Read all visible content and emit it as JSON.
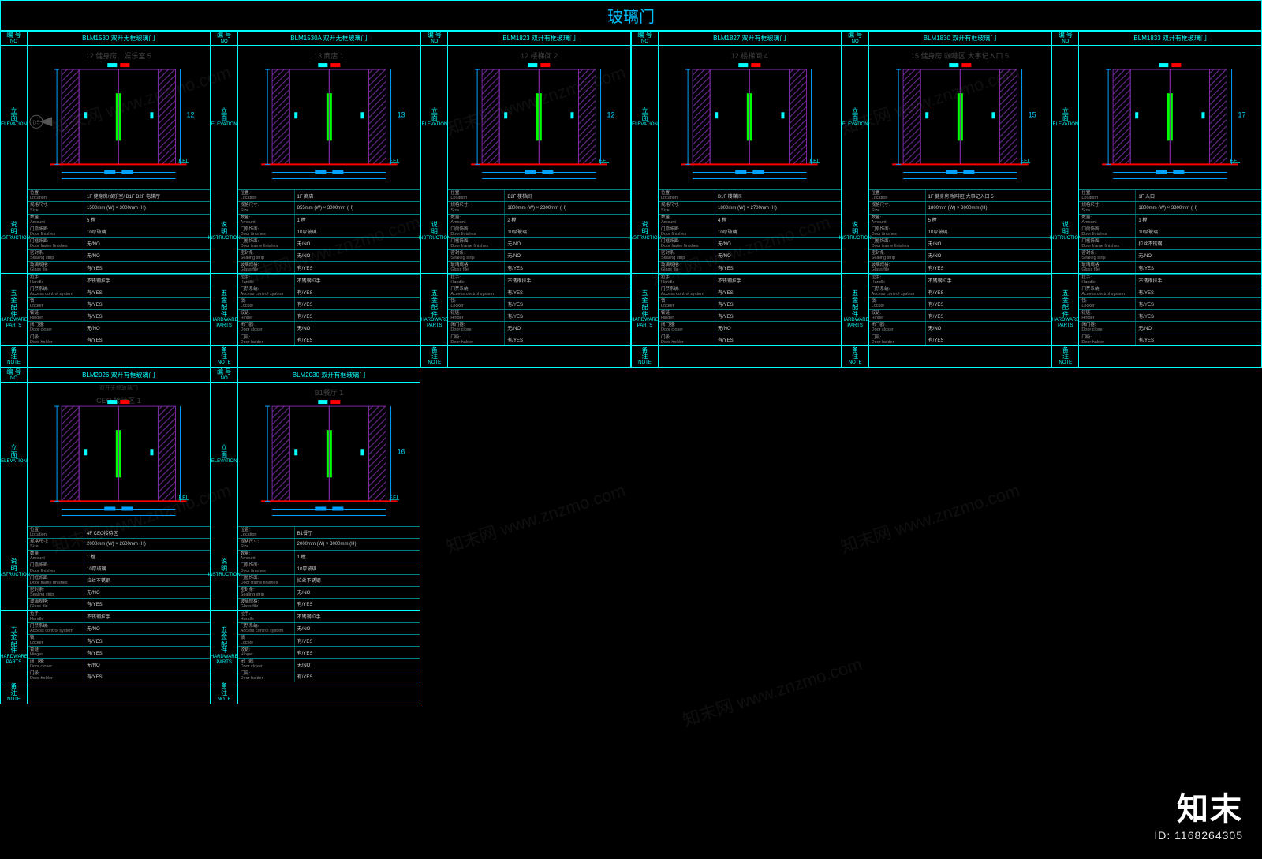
{
  "page": {
    "title": "玻璃门",
    "watermark_text": "知末网 www.znzmo.com",
    "brand_logo": "知末",
    "brand_id": "ID: 1168264305"
  },
  "labels": {
    "no_cn": "编 号",
    "no_en": "NO",
    "elev_cn": "立\n面",
    "elev_en": "ELEVATION",
    "instr_cn": "说\n明",
    "instr_en": "INSTRUCTION",
    "hw_cn": "五\n金\n配\n件",
    "hw_en": "HARDWARE\nPARTS",
    "note_cn": "备\n注",
    "note_en": "NOTE",
    "ffl": "F.F.L"
  },
  "spec_keys": {
    "location": {
      "cn": "位置:",
      "en": "Location"
    },
    "size": {
      "cn": "规格尺寸:",
      "en": "Size"
    },
    "qty": {
      "cn": "数量:",
      "en": "Amount"
    },
    "door_fin": {
      "cn": "门扇饰面:",
      "en": "Door finishes"
    },
    "frame_fin": {
      "cn": "门框饰面:",
      "en": "Door frame finishes"
    },
    "seal": {
      "cn": "密封条:",
      "en": "Sealing strip"
    },
    "glass": {
      "cn": "玻璃规格:",
      "en": "Glass file"
    },
    "handle": {
      "cn": "拉手:",
      "en": "Handle"
    },
    "access": {
      "cn": "门禁系统:",
      "en": "Access control system"
    },
    "lock": {
      "cn": "锁:",
      "en": "Locker"
    },
    "hinge": {
      "cn": "铰链:",
      "en": "Hinger"
    },
    "closer": {
      "cn": "闭门器:",
      "en": "Door closer"
    },
    "holder": {
      "cn": "门吸:",
      "en": "Door holder"
    }
  },
  "colors": {
    "bg": "#000000",
    "border": "#00ffff",
    "title": "#00bfff",
    "dim_blue": "#00a0ff",
    "door_green": "#00ff00",
    "hatch": "#7a2aa0",
    "floor_red": "#ff0000",
    "grey": "#555555",
    "dim_text": "#00d0ff"
  },
  "doors": [
    {
      "row": 1,
      "code": "BLM1530  双开无框玻璃门",
      "room": "12.健身房、娱乐室 5",
      "dim_label": "12",
      "marker": "D5",
      "spec": {
        "location": "1F 健身房/娱乐室/ B1F B2F 电梯厅",
        "size": "1500mm (W) × 3000mm (H)",
        "qty": "5 樘",
        "door_fin": "10厚玻璃",
        "frame_fin": "无/NO",
        "seal": "无/NO",
        "glass": "有/YES",
        "handle": "不锈钢拉手",
        "access": "有/YES",
        "lock": "有/YES",
        "hinge": "有/YES",
        "closer": "无/NO",
        "holder": "有/YES"
      }
    },
    {
      "row": 1,
      "code": "BLM1530A  双开无框玻璃门",
      "room": "13.商店 1",
      "dim_label": "13",
      "spec": {
        "location": "1F 商店",
        "size": "855mm (W) × 3000mm (H)",
        "qty": "1 樘",
        "door_fin": "10厚玻璃",
        "frame_fin": "无/NO",
        "seal": "无/NO",
        "glass": "有/YES",
        "handle": "不锈钢拉手",
        "access": "有/YES",
        "lock": "有/YES",
        "hinge": "有/YES",
        "closer": "无/NO",
        "holder": "有/YES"
      }
    },
    {
      "row": 1,
      "code": "BLM1823  双开有框玻璃门",
      "room": "12.楼梯间 2",
      "dim_label": "12",
      "spec": {
        "location": "B2F 楼梯间",
        "size": "1800mm (W) × 2300mm (H)",
        "qty": "2 樘",
        "door_fin": "10厚玻璃",
        "frame_fin": "无/NO",
        "seal": "无/NO",
        "glass": "有/YES",
        "handle": "不锈钢拉手",
        "access": "有/YES",
        "lock": "有/YES",
        "hinge": "有/YES",
        "closer": "无/NO",
        "holder": "有/YES"
      }
    },
    {
      "row": 1,
      "code": "BLM1827  双开有框玻璃门",
      "room": "12.楼梯间 4",
      "dim_label": "",
      "spec": {
        "location": "B1F 楼梯间",
        "size": "1800mm (W) × 2700mm (H)",
        "qty": "4 樘",
        "door_fin": "10厚玻璃",
        "frame_fin": "无/NO",
        "seal": "无/NO",
        "glass": "有/YES",
        "handle": "不锈钢拉手",
        "access": "有/YES",
        "lock": "有/YES",
        "hinge": "有/YES",
        "closer": "无/NO",
        "holder": "有/YES"
      }
    },
    {
      "row": 1,
      "code": "BLM1830  双开有框玻璃门",
      "room": "15.健身房 咖啡区 大事记入口 5",
      "dim_label": "15",
      "spec": {
        "location": "1F 健身房 咖啡区 大事记入口 5",
        "size": "1800mm (W) × 3000mm (H)",
        "qty": "5 樘",
        "door_fin": "10厚玻璃",
        "frame_fin": "无/NO",
        "seal": "无/NO",
        "glass": "有/YES",
        "handle": "不锈钢拉手",
        "access": "有/YES",
        "lock": "有/YES",
        "hinge": "有/YES",
        "closer": "无/NO",
        "holder": "有/YES"
      }
    },
    {
      "row": 1,
      "code": "BLM1833  双开有框玻璃门",
      "room": "",
      "dim_label": "17",
      "spec": {
        "location": "1F 入口",
        "size": "1800mm (W) × 3300mm (H)",
        "qty": "1 樘",
        "door_fin": "10厚玻璃",
        "frame_fin": "拉丝不锈钢",
        "seal": "无/NO",
        "glass": "有/YES",
        "handle": "不锈钢拉手",
        "access": "有/YES",
        "lock": "有/YES",
        "hinge": "有/YES",
        "closer": "无/NO",
        "holder": "有/YES"
      }
    },
    {
      "row": 2,
      "code": "BLM2026  双开有框玻璃门",
      "room": "CEO 接待区 1",
      "room2": "双开无框玻璃门",
      "dim_label": "",
      "spec": {
        "location": "4F CEO接待区",
        "size": "2000mm (W) × 2600mm (H)",
        "qty": "1 樘",
        "door_fin": "10厚玻璃",
        "frame_fin": "拉丝不锈钢",
        "seal": "无/NO",
        "glass": "有/YES",
        "handle": "不锈钢拉手",
        "access": "无/NO",
        "lock": "有/YES",
        "hinge": "有/YES",
        "closer": "无/NO",
        "holder": "有/YES"
      }
    },
    {
      "row": 2,
      "code": "BLM2030  双开有框玻璃门",
      "room": "B1餐厅 1",
      "dim_label": "16",
      "spec": {
        "location": "B1餐厅",
        "size": "2000mm (W) × 3000mm (H)",
        "qty": "1 樘",
        "door_fin": "10厚玻璃",
        "frame_fin": "拉丝不锈钢",
        "seal": "无/NO",
        "glass": "有/YES",
        "handle": "不锈钢拉手",
        "access": "无/NO",
        "lock": "有/YES",
        "hinge": "有/YES",
        "closer": "无/NO",
        "holder": "有/YES"
      }
    }
  ]
}
